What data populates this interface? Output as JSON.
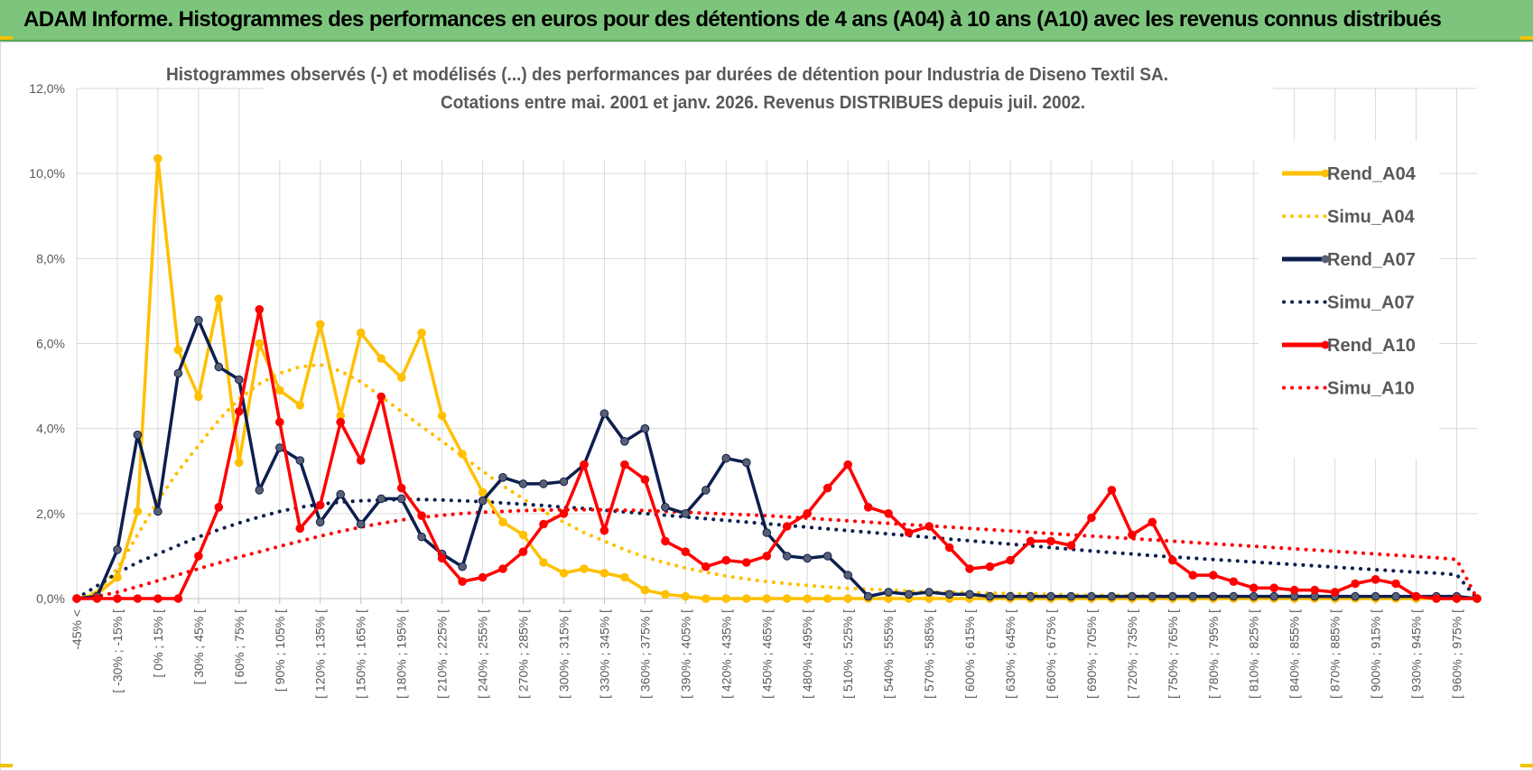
{
  "header": {
    "banner_title": "ADAM Informe. Histogrammes des performances en euros pour des détentions de 4 ans (A04) à 10 ans (A10) avec les revenus connus distribués"
  },
  "chart_data": {
    "type": "line",
    "title": [
      "Histogrammes observés (-) et modélisés (...) des performances par durées de détention pour Industria de Diseno Textil SA.",
      "Cotations entre mai. 2001 et janv. 2026. Revenus DISTRIBUES depuis juil. 2002."
    ],
    "xlabel": "",
    "ylabel": "",
    "ylim": [
      0,
      12
    ],
    "y_ticks": [
      0,
      2,
      4,
      6,
      8,
      10,
      12
    ],
    "y_tick_labels": [
      "0,0%",
      "2,0%",
      "4,0%",
      "6,0%",
      "8,0%",
      "10,0%",
      "12,0%"
    ],
    "grid": true,
    "legend_position": "right",
    "x_tick_labels": [
      "-45% <",
      "[ -30% ; -15% [",
      "[ 0% ; 15% [",
      "[ 30% ; 45% [",
      "[ 60% ; 75% [",
      "[ 90% ; 105% [",
      "[ 120% ; 135% [",
      "[ 150% ; 165% [",
      "[ 180% ; 195% [",
      "[ 210% ; 225% [",
      "[ 240% ; 255% [",
      "[ 270% ; 285% [",
      "[ 300% ; 315% [",
      "[ 330% ; 345% [",
      "[ 360% ; 375% [",
      "[ 390% ; 405% [",
      "[ 420% ; 435% [",
      "[ 450% ; 465% [",
      "[ 480% ; 495% [",
      "[ 510% ; 525% [",
      "[ 540% ; 555% [",
      "[ 570% ; 585% [",
      "[ 600% ; 615% [",
      "[ 630% ; 645% [",
      "[ 660% ; 675% [",
      "[ 690% ; 705% [",
      "[ 720% ; 735% [",
      "[ 750% ; 765% [",
      "[ 780% ; 795% [",
      "[ 810% ; 825% [",
      "[ 840% ; 855% [",
      "[ 870% ; 885% [",
      "[ 900% ; 915% [",
      "[ 930% ; 945% [",
      "[ 960% ; 975% ["
    ],
    "n_categories": 70,
    "series": [
      {
        "name": "Rend_A04",
        "color": "#ffc000",
        "style": "solid",
        "markers": true,
        "values": [
          0,
          0.1,
          0.5,
          2.05,
          10.35,
          5.85,
          4.75,
          7.05,
          3.2,
          6.0,
          4.9,
          4.55,
          6.45,
          4.3,
          6.25,
          5.65,
          5.2,
          6.25,
          4.3,
          3.4,
          2.5,
          1.8,
          1.5,
          0.85,
          0.6,
          0.7,
          0.6,
          0.5,
          0.2,
          0.1,
          0.05,
          0,
          0,
          0,
          0,
          0,
          0,
          0,
          0,
          0,
          0,
          0,
          0,
          0,
          0,
          0,
          0,
          0,
          0,
          0,
          0,
          0,
          0,
          0,
          0,
          0,
          0,
          0,
          0,
          0,
          0,
          0,
          0,
          0,
          0,
          0,
          0,
          0,
          0,
          0
        ]
      },
      {
        "name": "Simu_A04",
        "color": "#ffc000",
        "style": "dotted",
        "markers": false,
        "values": [
          0,
          0.15,
          0.7,
          1.5,
          2.3,
          3.0,
          3.6,
          4.2,
          4.7,
          5.05,
          5.3,
          5.45,
          5.5,
          5.35,
          5.1,
          4.75,
          4.4,
          4.05,
          3.7,
          3.35,
          3.0,
          2.65,
          2.35,
          2.05,
          1.8,
          1.55,
          1.35,
          1.15,
          0.98,
          0.84,
          0.72,
          0.62,
          0.53,
          0.46,
          0.4,
          0.35,
          0.31,
          0.27,
          0.24,
          0.22,
          0.2,
          0.18,
          0.16,
          0.15,
          0.14,
          0.13,
          0.12,
          0.11,
          0.1,
          0.09,
          0.08,
          0.08,
          0.07,
          0.06,
          0.06,
          0.05,
          0.05,
          0.04,
          0.04,
          0.04,
          0.03,
          0.03,
          0.03,
          0.02,
          0.02,
          0.02,
          0.02,
          0.02,
          0.01,
          0
        ]
      },
      {
        "name": "Rend_A07",
        "color": "#0d1f4f",
        "style": "solid",
        "markers": true,
        "values": [
          0,
          0.05,
          1.15,
          3.85,
          2.05,
          5.3,
          6.55,
          5.45,
          5.15,
          2.55,
          3.55,
          3.25,
          1.8,
          2.45,
          1.75,
          2.35,
          2.35,
          1.45,
          1.05,
          0.75,
          2.3,
          2.85,
          2.7,
          2.7,
          2.75,
          3.15,
          4.35,
          3.7,
          4.0,
          2.15,
          2.0,
          2.55,
          3.3,
          3.2,
          1.55,
          1.0,
          0.95,
          1.0,
          0.55,
          0.05,
          0.15,
          0.1,
          0.15,
          0.1,
          0.1,
          0.05,
          0.05,
          0.05,
          0.05,
          0.05,
          0.05,
          0.05,
          0.05,
          0.05,
          0.05,
          0.05,
          0.05,
          0.05,
          0.05,
          0.05,
          0.05,
          0.05,
          0.05,
          0.05,
          0.05,
          0.05,
          0.05,
          0.05,
          0.05,
          0
        ]
      },
      {
        "name": "Simu_A07",
        "color": "#0d1f4f",
        "style": "dotted",
        "markers": false,
        "values": [
          0,
          0.3,
          0.6,
          0.85,
          1.05,
          1.25,
          1.45,
          1.62,
          1.78,
          1.92,
          2.05,
          2.15,
          2.22,
          2.27,
          2.3,
          2.32,
          2.33,
          2.33,
          2.32,
          2.3,
          2.28,
          2.25,
          2.22,
          2.19,
          2.15,
          2.12,
          2.08,
          2.04,
          2.0,
          1.96,
          1.92,
          1.88,
          1.84,
          1.8,
          1.76,
          1.72,
          1.68,
          1.64,
          1.6,
          1.56,
          1.52,
          1.48,
          1.44,
          1.4,
          1.36,
          1.32,
          1.28,
          1.24,
          1.2,
          1.16,
          1.12,
          1.08,
          1.05,
          1.01,
          0.98,
          0.95,
          0.92,
          0.89,
          0.86,
          0.83,
          0.8,
          0.77,
          0.74,
          0.71,
          0.68,
          0.65,
          0.62,
          0.6,
          0.56,
          0
        ]
      },
      {
        "name": "Rend_A10",
        "color": "#ff0000",
        "style": "solid",
        "markers": true,
        "values": [
          0,
          0,
          0,
          0,
          0,
          0,
          1.0,
          2.15,
          4.4,
          6.8,
          4.15,
          1.65,
          2.2,
          4.15,
          3.25,
          4.75,
          2.6,
          1.95,
          0.95,
          0.4,
          0.5,
          0.7,
          1.1,
          1.75,
          2.0,
          3.15,
          1.6,
          3.15,
          2.8,
          1.35,
          1.1,
          0.75,
          0.9,
          0.85,
          1.0,
          1.7,
          2.0,
          2.6,
          3.15,
          2.15,
          2.0,
          1.55,
          1.7,
          1.2,
          0.7,
          0.75,
          0.9,
          1.35,
          1.35,
          1.25,
          1.9,
          2.55,
          1.5,
          1.8,
          0.9,
          0.55,
          0.55,
          0.4,
          0.25,
          0.25,
          0.2,
          0.2,
          0.15,
          0.35,
          0.45,
          0.35,
          0.05,
          0,
          0,
          0
        ]
      },
      {
        "name": "Simu_A10",
        "color": "#ff0000",
        "style": "dotted",
        "markers": false,
        "values": [
          0,
          0.05,
          0.15,
          0.28,
          0.42,
          0.56,
          0.7,
          0.84,
          0.98,
          1.1,
          1.23,
          1.35,
          1.47,
          1.58,
          1.68,
          1.77,
          1.85,
          1.91,
          1.96,
          2.0,
          2.03,
          2.05,
          2.07,
          2.08,
          2.09,
          2.09,
          2.09,
          2.08,
          2.07,
          2.05,
          2.03,
          2.01,
          1.99,
          1.97,
          1.95,
          1.92,
          1.89,
          1.86,
          1.83,
          1.8,
          1.77,
          1.74,
          1.71,
          1.68,
          1.65,
          1.62,
          1.59,
          1.56,
          1.53,
          1.5,
          1.47,
          1.44,
          1.41,
          1.38,
          1.35,
          1.32,
          1.29,
          1.26,
          1.23,
          1.2,
          1.17,
          1.14,
          1.11,
          1.08,
          1.05,
          1.02,
          0.99,
          0.96,
          0.92,
          0
        ]
      }
    ]
  }
}
